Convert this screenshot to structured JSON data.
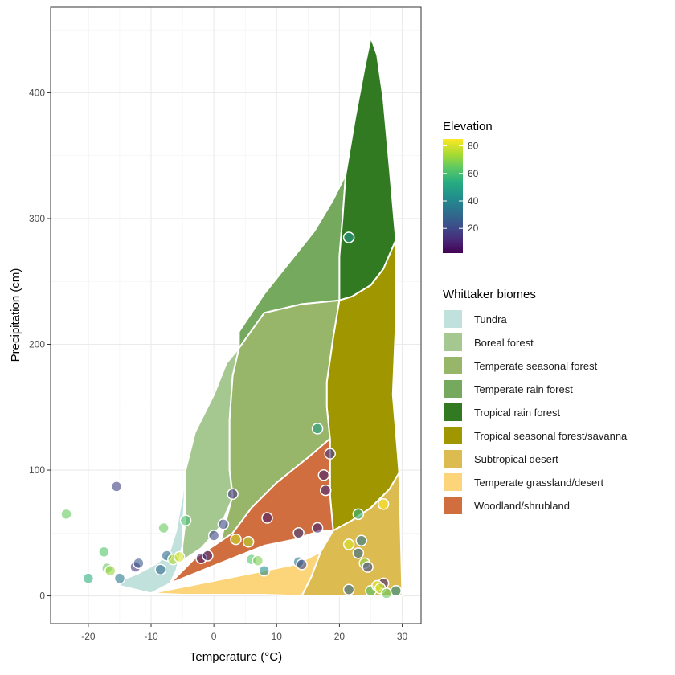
{
  "chart_data": {
    "type": "scatter",
    "xlabel": "Temperature",
    "xlabel_unit": "(°C)",
    "ylabel": "Precipitation (cm)",
    "xlim": [
      -26,
      33
    ],
    "ylim": [
      -22,
      468
    ],
    "x_ticks": [
      -20,
      -10,
      0,
      10,
      20,
      30
    ],
    "y_ticks": [
      0,
      100,
      200,
      300,
      400
    ],
    "grid": true,
    "legend_placement": "right",
    "colorbar": {
      "title": "Elevation",
      "min": 2,
      "max": 85,
      "ticks": [
        20,
        40,
        60,
        80
      ],
      "colormap": "viridis"
    },
    "biome_legend": {
      "title": "Whittaker biomes",
      "items": [
        {
          "name": "Tundra",
          "color": "#C1E1DD"
        },
        {
          "name": "Boreal forest",
          "color": "#A5C790"
        },
        {
          "name": "Temperate seasonal forest",
          "color": "#97B669"
        },
        {
          "name": "Temperate rain forest",
          "color": "#75A95E"
        },
        {
          "name": "Tropical rain forest",
          "color": "#317A22"
        },
        {
          "name": "Tropical seasonal forest/savanna",
          "color": "#A09700"
        },
        {
          "name": "Subtropical desert",
          "color": "#DCBB50"
        },
        {
          "name": "Temperate grassland/desert",
          "color": "#FCD57A"
        },
        {
          "name": "Woodland/shrubland",
          "color": "#D16E3F"
        }
      ]
    },
    "biomes": [
      {
        "name": "Tundra",
        "color": "#C1E1DD",
        "points": [
          [
            -15,
            12
          ],
          [
            -12,
            18
          ],
          [
            -9,
            26
          ],
          [
            -7,
            36
          ],
          [
            -6,
            52
          ],
          [
            -5,
            80
          ],
          [
            -4.5,
            100
          ],
          [
            -5,
            40
          ],
          [
            -6,
            20
          ],
          [
            -7,
            10
          ],
          [
            -10,
            2
          ],
          [
            -15,
            8
          ]
        ]
      },
      {
        "name": "Boreal forest",
        "color": "#A5C790",
        "points": [
          [
            -4.5,
            100
          ],
          [
            -4,
            110
          ],
          [
            -3,
            130
          ],
          [
            0,
            160
          ],
          [
            2,
            185
          ],
          [
            4,
            197
          ],
          [
            3,
            175
          ],
          [
            2.5,
            140
          ],
          [
            2.5,
            100
          ],
          [
            3,
            78
          ],
          [
            1,
            55
          ],
          [
            -2,
            38
          ],
          [
            -5,
            28
          ],
          [
            -5,
            40
          ],
          [
            -4.5,
            60
          ]
        ]
      },
      {
        "name": "Temperate seasonal forest",
        "color": "#97B669",
        "points": [
          [
            4,
            197
          ],
          [
            8,
            225
          ],
          [
            14,
            232
          ],
          [
            20,
            235
          ],
          [
            19,
            205
          ],
          [
            18,
            170
          ],
          [
            18,
            150
          ],
          [
            18.5,
            125
          ],
          [
            15,
            110
          ],
          [
            10,
            90
          ],
          [
            6,
            70
          ],
          [
            3,
            50
          ],
          [
            1,
            42
          ],
          [
            3,
            80
          ],
          [
            2.5,
            100
          ],
          [
            2.5,
            140
          ],
          [
            3,
            175
          ]
        ]
      },
      {
        "name": "Temperate rain forest",
        "color": "#75A95E",
        "points": [
          [
            4,
            197
          ],
          [
            4,
            210
          ],
          [
            8,
            240
          ],
          [
            12,
            265
          ],
          [
            16,
            290
          ],
          [
            19,
            315
          ],
          [
            21,
            335
          ],
          [
            20.5,
            300
          ],
          [
            20,
            270
          ],
          [
            20,
            235
          ],
          [
            14,
            232
          ],
          [
            8,
            225
          ]
        ]
      },
      {
        "name": "Tropical rain forest",
        "color": "#317A22",
        "points": [
          [
            21,
            335
          ],
          [
            22.5,
            380
          ],
          [
            24,
            420
          ],
          [
            25,
            444
          ],
          [
            26,
            430
          ],
          [
            27,
            395
          ],
          [
            28,
            340
          ],
          [
            29,
            283
          ],
          [
            27,
            260
          ],
          [
            25,
            247
          ],
          [
            22,
            238
          ],
          [
            20,
            235
          ],
          [
            20,
            270
          ],
          [
            20.5,
            300
          ]
        ]
      },
      {
        "name": "Tropical seasonal forest/savanna",
        "color": "#A09700",
        "points": [
          [
            20,
            235
          ],
          [
            22,
            238
          ],
          [
            25,
            247
          ],
          [
            27,
            260
          ],
          [
            29,
            283
          ],
          [
            29,
            220
          ],
          [
            28.5,
            160
          ],
          [
            29,
            130
          ],
          [
            29.5,
            98
          ],
          [
            28,
            85
          ],
          [
            25,
            70
          ],
          [
            22,
            60
          ],
          [
            19,
            52
          ],
          [
            18.5,
            80
          ],
          [
            18.5,
            125
          ],
          [
            18,
            150
          ],
          [
            18,
            170
          ],
          [
            19,
            205
          ]
        ]
      },
      {
        "name": "Subtropical desert",
        "color": "#DCBB50",
        "points": [
          [
            14,
            0
          ],
          [
            15.5,
            15
          ],
          [
            17,
            35
          ],
          [
            19,
            52
          ],
          [
            22,
            60
          ],
          [
            25,
            70
          ],
          [
            28,
            85
          ],
          [
            29.5,
            98
          ],
          [
            30,
            0
          ]
        ]
      },
      {
        "name": "Temperate grassland/desert",
        "color": "#FCD57A",
        "points": [
          [
            -10,
            2
          ],
          [
            -7,
            5
          ],
          [
            -3,
            9
          ],
          [
            2,
            14
          ],
          [
            8,
            20
          ],
          [
            13,
            25
          ],
          [
            17,
            35
          ],
          [
            15.5,
            15
          ],
          [
            14,
            0
          ],
          [
            8,
            1
          ],
          [
            2,
            1
          ],
          [
            -5,
            1
          ]
        ]
      },
      {
        "name": "Woodland/shrubland",
        "color": "#D16E3F",
        "points": [
          [
            -7,
            10
          ],
          [
            -4,
            16
          ],
          [
            -1,
            22
          ],
          [
            3,
            30
          ],
          [
            8,
            40
          ],
          [
            13,
            45
          ],
          [
            17,
            52
          ],
          [
            19,
            52
          ],
          [
            18.5,
            80
          ],
          [
            18.5,
            125
          ],
          [
            15,
            110
          ],
          [
            10,
            90
          ],
          [
            6,
            70
          ],
          [
            3,
            50
          ],
          [
            0,
            40
          ],
          [
            -3,
            30
          ],
          [
            -5,
            20
          ]
        ]
      }
    ],
    "points": [
      {
        "x": 21.5,
        "y": 285,
        "elev": 45
      },
      {
        "x": 16.5,
        "y": 133,
        "elev": 48
      },
      {
        "x": 18.5,
        "y": 113,
        "elev": 15
      },
      {
        "x": 17.5,
        "y": 96,
        "elev": 10
      },
      {
        "x": 17.8,
        "y": 84,
        "elev": 12
      },
      {
        "x": 16.5,
        "y": 54,
        "elev": 10
      },
      {
        "x": 13.5,
        "y": 50,
        "elev": 18
      },
      {
        "x": 8.5,
        "y": 62,
        "elev": 8
      },
      {
        "x": 3,
        "y": 81,
        "elev": 14
      },
      {
        "x": 1.5,
        "y": 57,
        "elev": 20
      },
      {
        "x": 0,
        "y": 48,
        "elev": 20
      },
      {
        "x": -4.5,
        "y": 60,
        "elev": 60
      },
      {
        "x": -8,
        "y": 54,
        "elev": 65
      },
      {
        "x": -15.5,
        "y": 87,
        "elev": 18
      },
      {
        "x": -23.5,
        "y": 65,
        "elev": 65
      },
      {
        "x": -17.5,
        "y": 35,
        "elev": 62
      },
      {
        "x": -17,
        "y": 22,
        "elev": 65
      },
      {
        "x": -16.5,
        "y": 20,
        "elev": 72
      },
      {
        "x": -20,
        "y": 14,
        "elev": 55
      },
      {
        "x": -15,
        "y": 14,
        "elev": 35
      },
      {
        "x": -12.5,
        "y": 23,
        "elev": 15
      },
      {
        "x": -12,
        "y": 26,
        "elev": 25
      },
      {
        "x": -8.5,
        "y": 21,
        "elev": 30
      },
      {
        "x": -7.5,
        "y": 32,
        "elev": 30
      },
      {
        "x": -6.5,
        "y": 29,
        "elev": 75
      },
      {
        "x": -5.5,
        "y": 31,
        "elev": 80
      },
      {
        "x": -2,
        "y": 30,
        "elev": 10
      },
      {
        "x": -1,
        "y": 32,
        "elev": 12
      },
      {
        "x": 3.5,
        "y": 45,
        "elev": 78
      },
      {
        "x": 5.5,
        "y": 43,
        "elev": 75
      },
      {
        "x": 6,
        "y": 29,
        "elev": 62
      },
      {
        "x": 7,
        "y": 28,
        "elev": 68
      },
      {
        "x": 8,
        "y": 20,
        "elev": 42
      },
      {
        "x": 13.5,
        "y": 27,
        "elev": 35
      },
      {
        "x": 14,
        "y": 25,
        "elev": 20
      },
      {
        "x": 23,
        "y": 65,
        "elev": 55
      },
      {
        "x": 21.5,
        "y": 41,
        "elev": 80
      },
      {
        "x": 23.5,
        "y": 44,
        "elev": 35
      },
      {
        "x": 23,
        "y": 34,
        "elev": 30
      },
      {
        "x": 24,
        "y": 26,
        "elev": 70
      },
      {
        "x": 24.5,
        "y": 23,
        "elev": 20
      },
      {
        "x": 27,
        "y": 73,
        "elev": 85
      },
      {
        "x": 27,
        "y": 10,
        "elev": 10
      },
      {
        "x": 21.5,
        "y": 5,
        "elev": 30
      },
      {
        "x": 25,
        "y": 4,
        "elev": 62
      },
      {
        "x": 26,
        "y": 8,
        "elev": 82
      },
      {
        "x": 26.5,
        "y": 6,
        "elev": 78
      },
      {
        "x": 27.5,
        "y": 2,
        "elev": 65
      },
      {
        "x": 29,
        "y": 4,
        "elev": 40
      }
    ]
  }
}
